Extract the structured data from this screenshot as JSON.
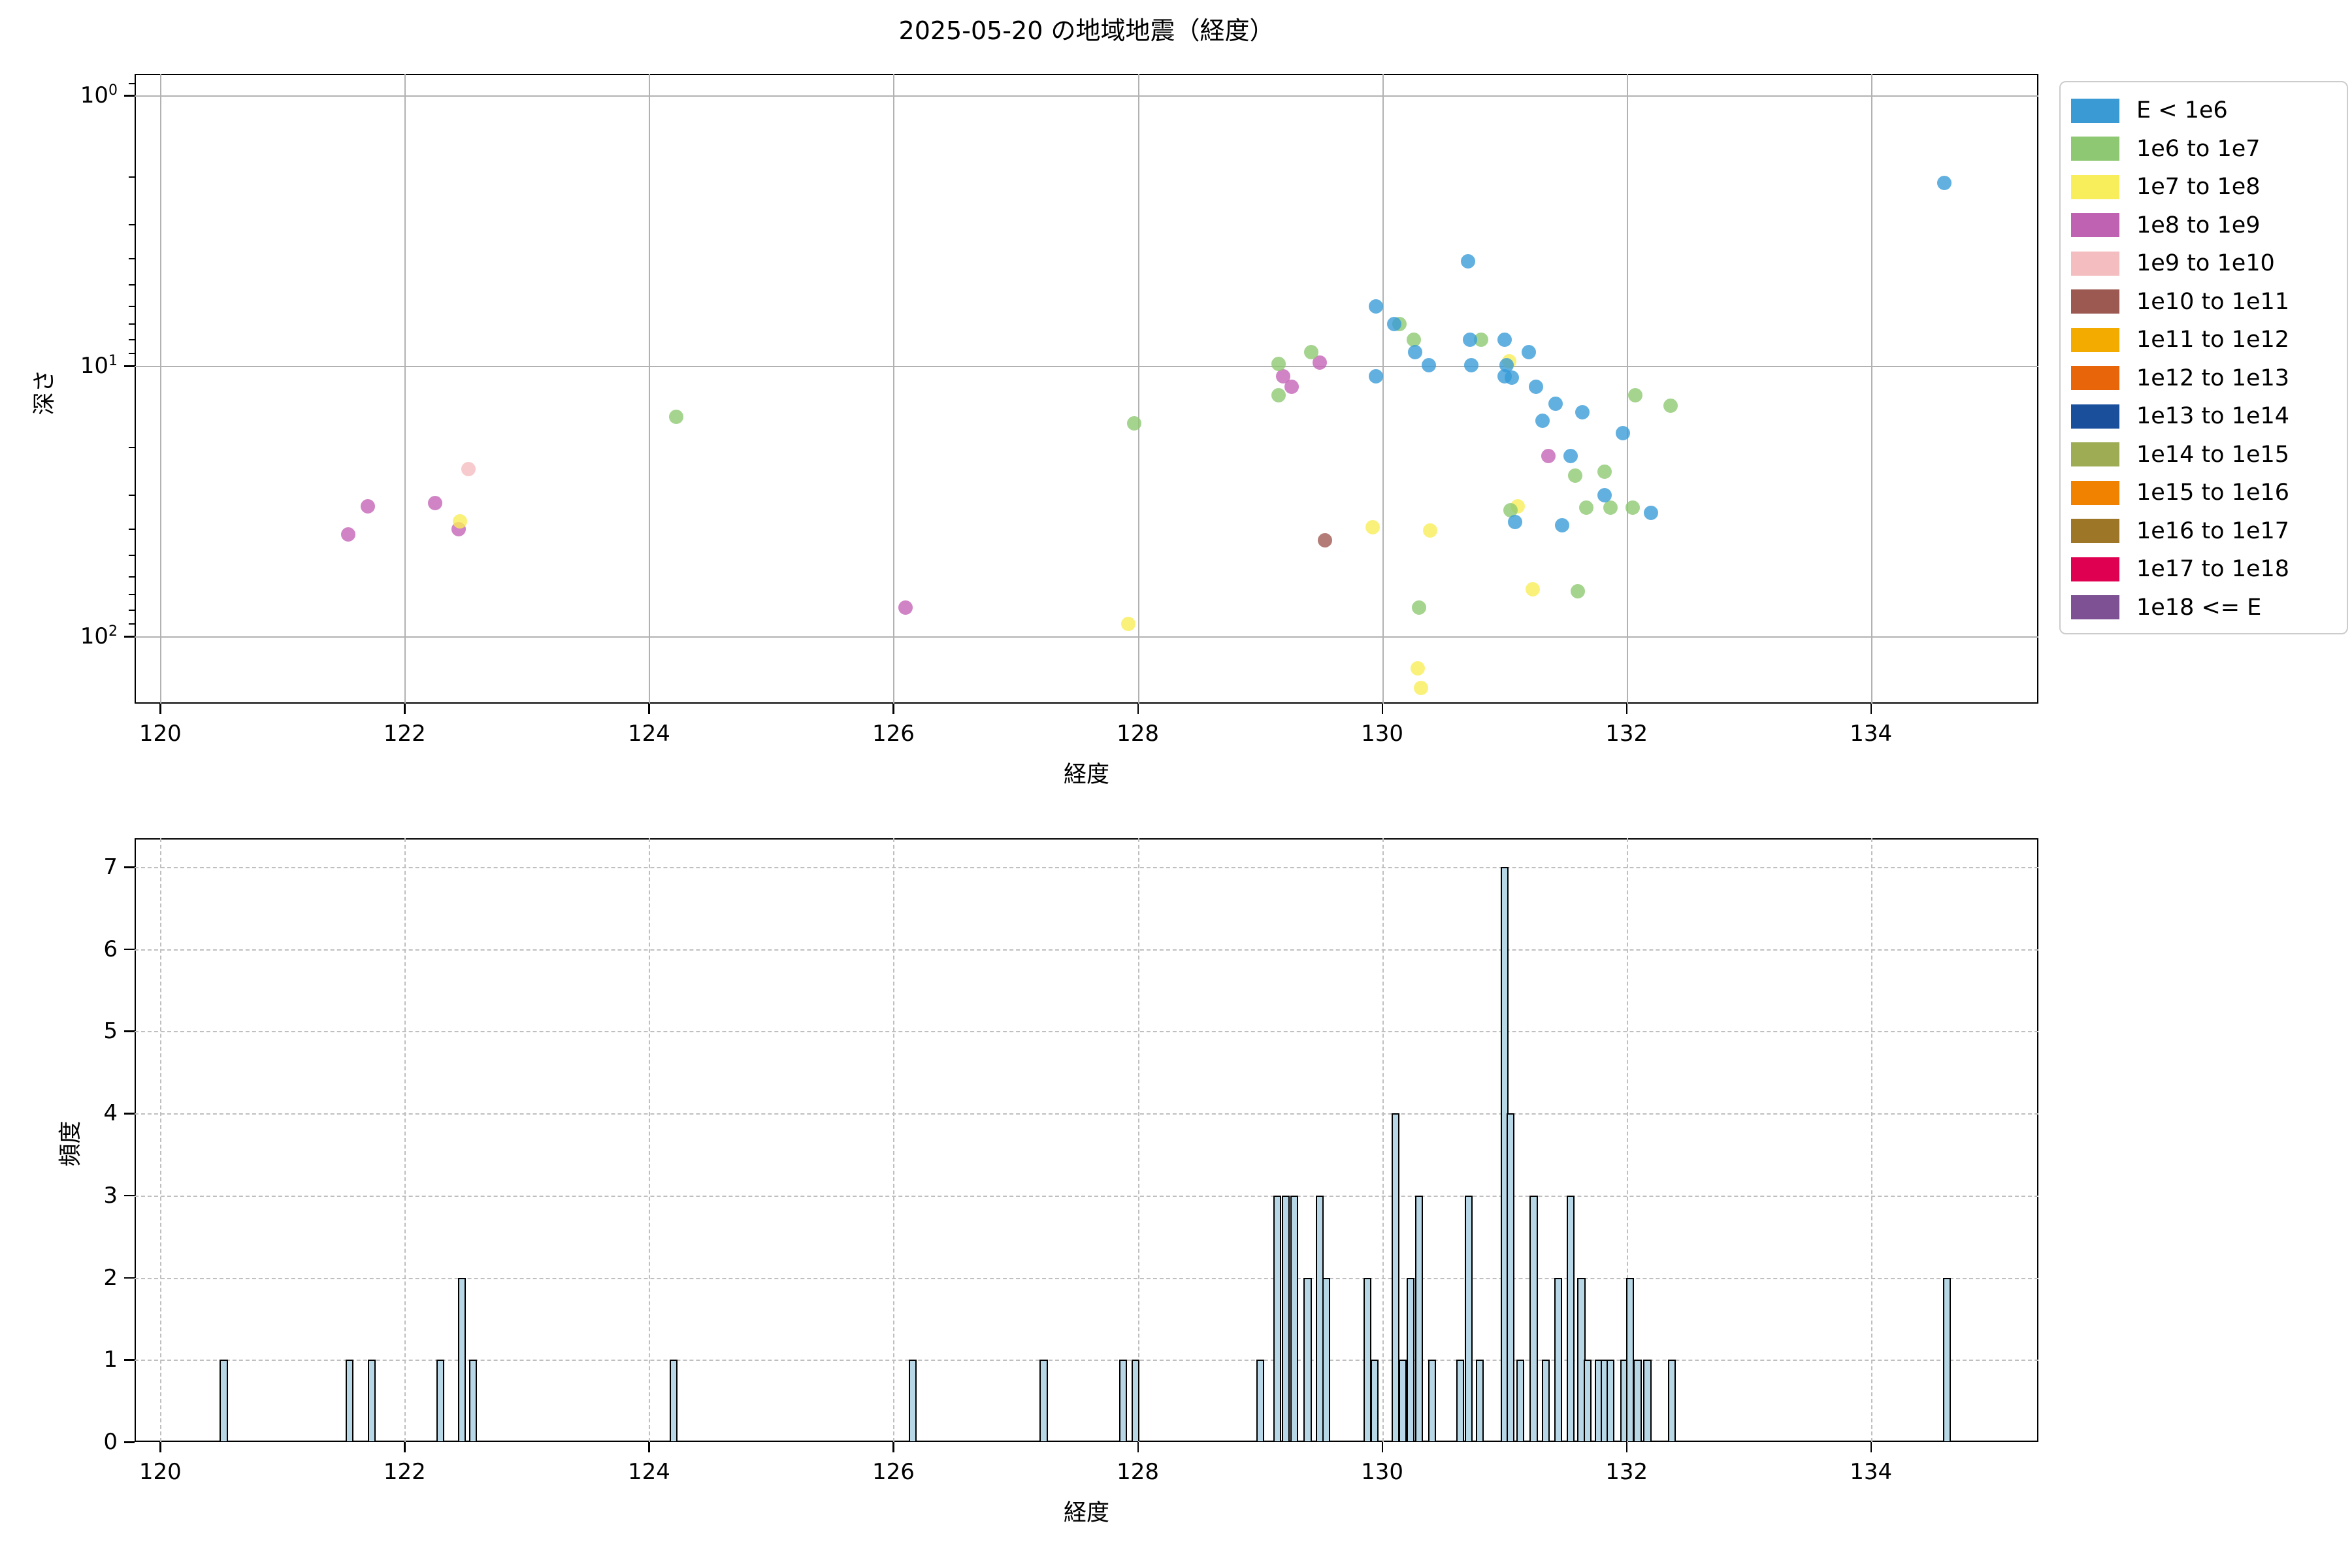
{
  "title": "2025-05-20 の地域地震（経度）",
  "chart_data": [
    {
      "type": "scatter",
      "title": "2025-05-20 の地域地震（経度）",
      "xlabel": "経度",
      "ylabel": "深さ",
      "x_range": [
        119.79,
        135.37
      ],
      "xticks": [
        120,
        122,
        124,
        126,
        128,
        130,
        132,
        134
      ],
      "y_scale": "log",
      "y_inverted": true,
      "y_range_depth": [
        0.83,
        177
      ],
      "ytick_exponents": [
        0,
        1,
        2
      ],
      "grid": "solid",
      "legend_position": "right-outside",
      "series": [
        {
          "name": "1e10 to 1e11",
          "color": "#9c5952",
          "points": [
            [
              129.53,
              44
            ]
          ]
        },
        {
          "name": "1e9 to 1e10",
          "color": "#f4bdbf",
          "points": [
            [
              122.52,
              24
            ]
          ]
        },
        {
          "name": "1e8 to 1e9",
          "color": "#c062b2",
          "points": [
            [
              121.54,
              42
            ],
            [
              121.7,
              33
            ],
            [
              122.25,
              32
            ],
            [
              122.44,
              40
            ],
            [
              126.1,
              78
            ],
            [
              129.49,
              9.7
            ],
            [
              129.19,
              10.9
            ],
            [
              129.26,
              11.9
            ],
            [
              131.36,
              21.5
            ]
          ]
        },
        {
          "name": "1e7 to 1e8",
          "color": "#f8ee5c",
          "points": [
            [
              122.45,
              37.5
            ],
            [
              127.92,
              90
            ],
            [
              131.04,
              9.6
            ],
            [
              131.11,
              33
            ],
            [
              129.92,
              39.5
            ],
            [
              130.39,
              40.5
            ],
            [
              131.23,
              67
            ],
            [
              130.29,
              131
            ],
            [
              130.32,
              155
            ]
          ]
        },
        {
          "name": "1e6 to 1e7",
          "color": "#8fc873",
          "points": [
            [
              124.22,
              15.4
            ],
            [
              127.97,
              16.3
            ],
            [
              130.14,
              7.0
            ],
            [
              130.26,
              8.0
            ],
            [
              129.42,
              8.9
            ],
            [
              129.15,
              9.8
            ],
            [
              129.15,
              12.8
            ],
            [
              130.81,
              8.0
            ],
            [
              131.58,
              25.4
            ],
            [
              131.67,
              33.3
            ],
            [
              131.05,
              34.2
            ],
            [
              131.82,
              24.5
            ],
            [
              131.87,
              33.3
            ],
            [
              132.05,
              33.3
            ],
            [
              131.6,
              68
            ],
            [
              130.3,
              78
            ],
            [
              132.07,
              12.8
            ],
            [
              132.36,
              14.0
            ]
          ]
        },
        {
          "name": "E < 1e6",
          "color": "#3a9ad4",
          "points": [
            [
              130.7,
              4.1
            ],
            [
              129.95,
              6.0
            ],
            [
              130.1,
              7.0
            ],
            [
              130.27,
              8.9
            ],
            [
              130.38,
              9.9
            ],
            [
              129.95,
              10.9
            ],
            [
              130.73,
              9.9
            ],
            [
              130.72,
              8.0
            ],
            [
              131.0,
              8.0
            ],
            [
              131.02,
              9.9
            ],
            [
              131.0,
              10.9
            ],
            [
              131.06,
              11.0
            ],
            [
              131.2,
              8.9
            ],
            [
              131.26,
              11.9
            ],
            [
              131.42,
              13.8
            ],
            [
              131.64,
              14.8
            ],
            [
              131.31,
              15.9
            ],
            [
              131.54,
              21.5
            ],
            [
              131.09,
              37.7
            ],
            [
              131.82,
              30
            ],
            [
              132.2,
              34.9
            ],
            [
              131.47,
              38.7
            ],
            [
              131.97,
              17.7
            ],
            [
              134.6,
              2.1
            ]
          ]
        },
        {
          "name": "1e11 to 1e12",
          "color": "#f3ab00",
          "points": []
        },
        {
          "name": "1e12 to 1e13",
          "color": "#e8650a",
          "points": []
        },
        {
          "name": "1e13 to 1e14",
          "color": "#1a4f9c",
          "points": []
        },
        {
          "name": "1e14 to 1e15",
          "color": "#9ead54",
          "points": []
        },
        {
          "name": "1e15 to 1e16",
          "color": "#f08200",
          "points": []
        },
        {
          "name": "1e16 to 1e17",
          "color": "#9d7627",
          "points": []
        },
        {
          "name": "1e17 to 1e18",
          "color": "#df0051",
          "points": []
        },
        {
          "name": "1e18 <= E",
          "color": "#7d5193",
          "points": []
        }
      ],
      "legend_order": [
        "E < 1e6",
        "1e6 to 1e7",
        "1e7 to 1e8",
        "1e8 to 1e9",
        "1e9 to 1e10",
        "1e10 to 1e11",
        "1e11 to 1e12",
        "1e12 to 1e13",
        "1e13 to 1e14",
        "1e14 to 1e15",
        "1e15 to 1e16",
        "1e16 to 1e17",
        "1e17 to 1e18",
        "1e18 <= E"
      ]
    },
    {
      "type": "bar",
      "xlabel": "経度",
      "ylabel": "頻度",
      "x_range": [
        119.79,
        135.37
      ],
      "xticks": [
        120,
        122,
        124,
        126,
        128,
        130,
        132,
        134
      ],
      "y_range": [
        0,
        7.35
      ],
      "yticks": [
        0,
        1,
        2,
        3,
        4,
        5,
        6,
        7
      ],
      "grid": "dashed",
      "bar_width_deg": 0.065,
      "bar_fill": "#b7d7e6",
      "bar_edge": "#000000",
      "bars": [
        [
          120.52,
          1
        ],
        [
          121.55,
          1
        ],
        [
          121.73,
          1
        ],
        [
          122.29,
          1
        ],
        [
          122.47,
          2
        ],
        [
          122.56,
          1
        ],
        [
          124.2,
          1
        ],
        [
          126.16,
          1
        ],
        [
          127.23,
          1
        ],
        [
          127.88,
          1
        ],
        [
          127.98,
          1
        ],
        [
          129.0,
          1
        ],
        [
          129.14,
          3
        ],
        [
          129.21,
          3
        ],
        [
          129.28,
          3
        ],
        [
          129.39,
          2
        ],
        [
          129.49,
          3
        ],
        [
          129.54,
          2
        ],
        [
          129.88,
          2
        ],
        [
          129.94,
          1
        ],
        [
          130.11,
          4
        ],
        [
          130.17,
          1
        ],
        [
          130.23,
          2
        ],
        [
          130.3,
          3
        ],
        [
          130.41,
          1
        ],
        [
          130.64,
          1
        ],
        [
          130.71,
          3
        ],
        [
          130.8,
          1
        ],
        [
          131.0,
          7
        ],
        [
          131.05,
          4
        ],
        [
          131.13,
          1
        ],
        [
          131.24,
          3
        ],
        [
          131.34,
          1
        ],
        [
          131.44,
          2
        ],
        [
          131.54,
          3
        ],
        [
          131.63,
          2
        ],
        [
          131.68,
          1
        ],
        [
          131.77,
          1
        ],
        [
          131.82,
          1
        ],
        [
          131.87,
          1
        ],
        [
          131.98,
          1
        ],
        [
          132.03,
          2
        ],
        [
          132.09,
          1
        ],
        [
          132.17,
          1
        ],
        [
          132.37,
          1
        ],
        [
          134.62,
          2
        ]
      ]
    }
  ]
}
